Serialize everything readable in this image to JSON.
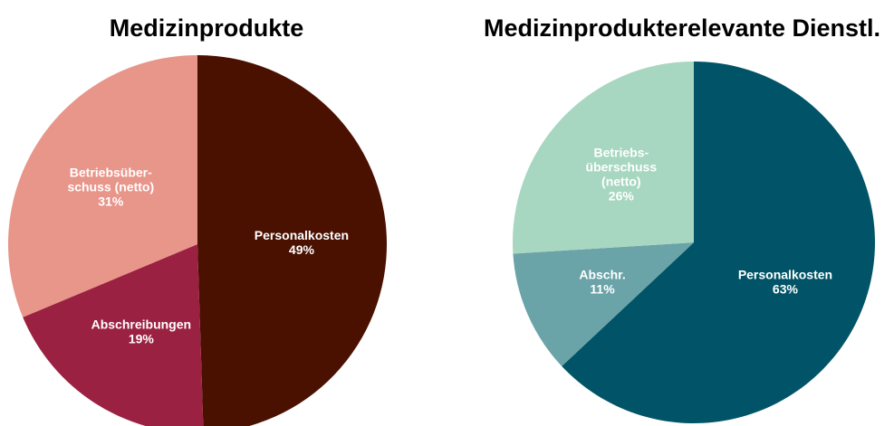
{
  "chart_data": [
    {
      "type": "pie",
      "title": "Medizinprodukte",
      "categories": [
        "Personalkosten",
        "Abschreibungen",
        "Betriebsüber-\nschuss (netto)"
      ],
      "values": [
        49,
        19,
        31
      ],
      "value_labels": [
        "49%",
        "19%",
        "31%"
      ],
      "colors": [
        "#4a1000",
        "#9b2142",
        "#e8958a"
      ]
    },
    {
      "type": "pie",
      "title": "Medizinprodukterelevante Dienstl.",
      "categories": [
        "Personalkosten",
        "Abschr.",
        "Betriebs-\nüberschuss\n(netto)"
      ],
      "values": [
        63,
        11,
        26
      ],
      "value_labels": [
        "63%",
        "11%",
        "26%"
      ],
      "colors": [
        "#015467",
        "#6aa3a8",
        "#a7d7c0"
      ]
    }
  ]
}
